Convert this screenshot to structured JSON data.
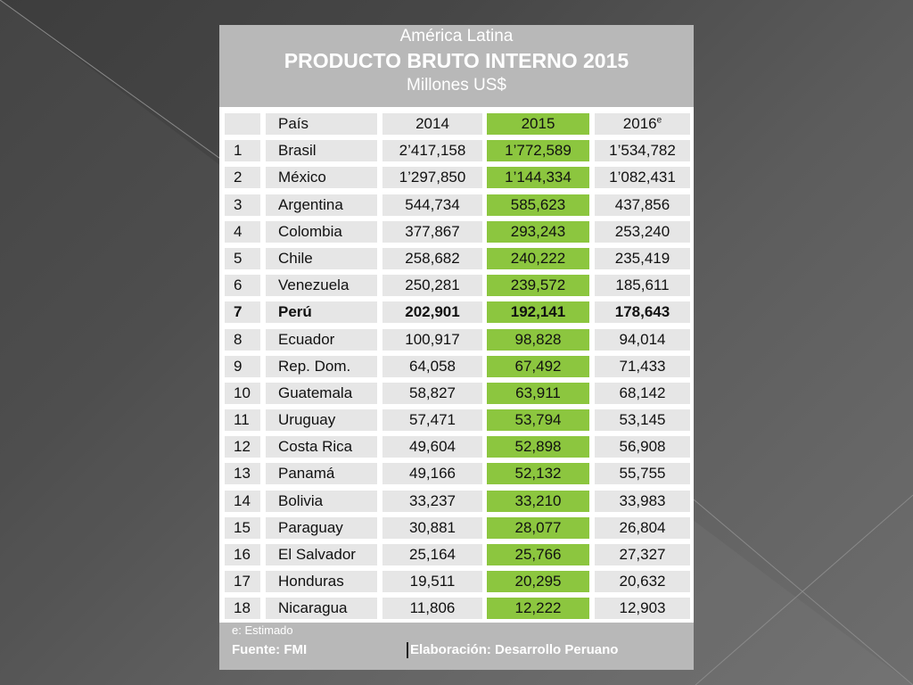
{
  "header": {
    "region": "América Latina",
    "title": "PRODUCTO BRUTO INTERNO 2015",
    "unit": "Millones US$"
  },
  "columns": {
    "num": "",
    "country": "País",
    "y2014": "2014",
    "y2015": "2015",
    "y2016": "2016",
    "y2016_sup": "e"
  },
  "rows": [
    {
      "n": "1",
      "country": "Brasil",
      "y2014": "2’417,158",
      "y2015": "1’772,589",
      "y2016": "1’534,782"
    },
    {
      "n": "2",
      "country": "México",
      "y2014": "1’297,850",
      "y2015": "1’144,334",
      "y2016": "1’082,431"
    },
    {
      "n": "3",
      "country": "Argentina",
      "y2014": "544,734",
      "y2015": "585,623",
      "y2016": "437,856"
    },
    {
      "n": "4",
      "country": "Colombia",
      "y2014": "377,867",
      "y2015": "293,243",
      "y2016": "253,240"
    },
    {
      "n": "5",
      "country": "Chile",
      "y2014": "258,682",
      "y2015": "240,222",
      "y2016": "235,419"
    },
    {
      "n": "6",
      "country": "Venezuela",
      "y2014": "250,281",
      "y2015": "239,572",
      "y2016": "185,611"
    },
    {
      "n": "7",
      "country": "Perú",
      "y2014": "202,901",
      "y2015": "192,141",
      "y2016": "178,643"
    },
    {
      "n": "8",
      "country": "Ecuador",
      "y2014": "100,917",
      "y2015": "98,828",
      "y2016": "94,014"
    },
    {
      "n": "9",
      "country": "Rep. Dom.",
      "y2014": "64,058",
      "y2015": "67,492",
      "y2016": "71,433"
    },
    {
      "n": "10",
      "country": "Guatemala",
      "y2014": "58,827",
      "y2015": "63,911",
      "y2016": "68,142"
    },
    {
      "n": "11",
      "country": "Uruguay",
      "y2014": "57,471",
      "y2015": "53,794",
      "y2016": "53,145"
    },
    {
      "n": "12",
      "country": "Costa Rica",
      "y2014": "49,604",
      "y2015": "52,898",
      "y2016": "56,908"
    },
    {
      "n": "13",
      "country": "Panamá",
      "y2014": "49,166",
      "y2015": "52,132",
      "y2016": "55,755"
    },
    {
      "n": "14",
      "country": "Bolivia",
      "y2014": "33,237",
      "y2015": "33,210",
      "y2016": "33,983"
    },
    {
      "n": "15",
      "country": "Paraguay",
      "y2014": "30,881",
      "y2015": "28,077",
      "y2016": "26,804"
    },
    {
      "n": "16",
      "country": "El Salvador",
      "y2014": "25,164",
      "y2015": "25,766",
      "y2016": "27,327"
    },
    {
      "n": "17",
      "country": "Honduras",
      "y2014": "19,511",
      "y2015": "20,295",
      "y2016": "20,632"
    },
    {
      "n": "18",
      "country": "Nicaragua",
      "y2014": "11,806",
      "y2015": "12,222",
      "y2016": "12,903"
    }
  ],
  "highlight_row": "7",
  "footer": {
    "note": "e: Estimado",
    "source": "Fuente: FMI",
    "credit": "Elaboración: Desarrollo Peruano"
  },
  "colors": {
    "highlight_column": "#8cc63f",
    "cell_bg": "#e6e6e6",
    "header_bg": "#b8b8b8"
  }
}
